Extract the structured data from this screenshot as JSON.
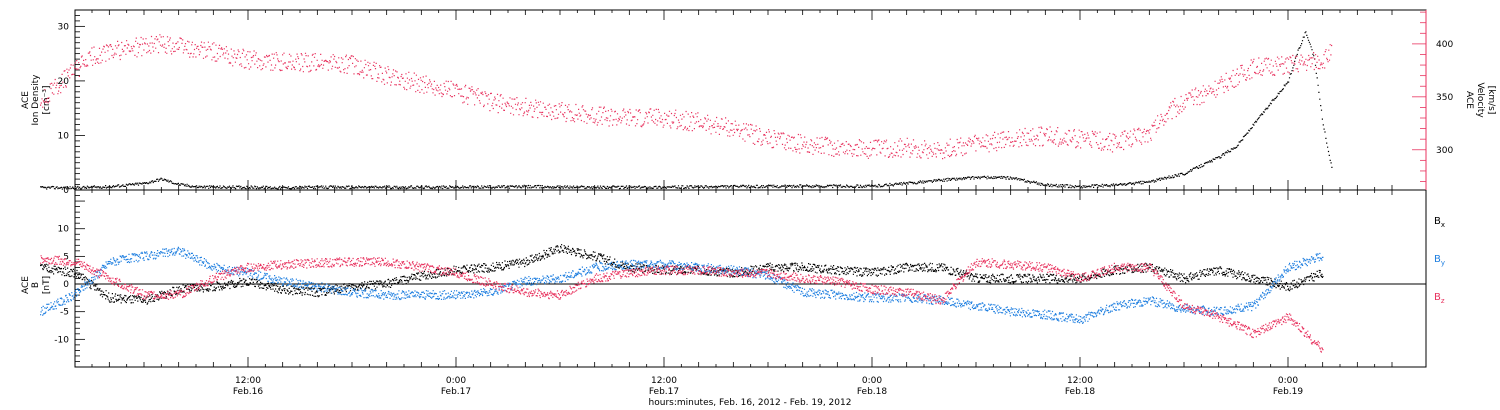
{
  "colors": {
    "black": "#000000",
    "red": "#e8335f",
    "blue": "#1f7fe0"
  },
  "chart_data": [
    {
      "type": "scatter",
      "panel": "top",
      "ylabel_lines": [
        "ACE",
        "Ion Density",
        "[cm⁻³]"
      ],
      "y2label_lines": [
        "ACE",
        "Velocity",
        "[km/s]"
      ],
      "ylim": [
        0,
        33
      ],
      "y_ticks": [
        "0",
        "10",
        "20",
        "30"
      ],
      "y2lim": [
        262,
        432
      ],
      "y2_ticks": [
        "300",
        "350",
        "400"
      ],
      "series": [
        {
          "color": "#000000",
          "axis": "left",
          "x_hours": [
            0,
            2,
            4,
            6,
            7,
            8,
            9,
            10,
            12,
            14,
            16,
            18,
            20,
            22,
            24,
            28,
            32,
            36,
            40,
            44,
            48,
            50,
            52,
            54,
            56,
            58,
            60,
            62,
            64,
            66,
            68,
            69,
            70,
            71,
            72,
            72.5,
            73,
            73.5,
            74,
            74.5
          ],
          "y": [
            0.4,
            0.4,
            0.6,
            1.2,
            2.0,
            1.0,
            0.6,
            0.5,
            0.5,
            0.4,
            0.5,
            0.5,
            0.5,
            0.5,
            0.5,
            0.6,
            0.5,
            0.5,
            0.6,
            0.7,
            0.7,
            1.2,
            1.8,
            2.3,
            2.2,
            0.9,
            0.6,
            0.9,
            1.5,
            3.0,
            6.0,
            8.0,
            12.0,
            16.0,
            20.0,
            25.0,
            29.0,
            24.0,
            12.0,
            4.0
          ]
        },
        {
          "color": "#e8335f",
          "axis": "right",
          "x_hours": [
            0,
            1,
            2,
            3,
            4,
            5,
            6,
            7,
            8,
            9,
            10,
            11,
            12,
            14,
            16,
            18,
            20,
            22,
            24,
            26,
            28,
            30,
            32,
            34,
            36,
            38,
            40,
            42,
            44,
            46,
            48,
            50,
            52,
            54,
            56,
            58,
            60,
            62,
            64,
            65,
            66,
            68,
            70,
            72,
            74,
            74.5
          ],
          "y": [
            345,
            360,
            375,
            388,
            392,
            395,
            398,
            400,
            398,
            394,
            392,
            388,
            385,
            383,
            382,
            380,
            370,
            362,
            355,
            345,
            340,
            336,
            332,
            330,
            330,
            326,
            320,
            310,
            305,
            302,
            300,
            302,
            300,
            305,
            310,
            313,
            310,
            306,
            316,
            335,
            345,
            360,
            378,
            380,
            385,
            392
          ]
        }
      ]
    },
    {
      "type": "scatter",
      "panel": "bottom",
      "ylabel_lines": [
        "ACE",
        "B",
        "[nT]"
      ],
      "ylim": [
        -15,
        17
      ],
      "y_ticks": [
        "-10",
        "-5",
        "0",
        "5",
        "10"
      ],
      "legend": [
        "B",
        "B",
        "B"
      ],
      "legend_subscripts": [
        "x",
        "y",
        "z"
      ],
      "x_ticks": [
        "12:00",
        "0:00",
        "12:00",
        "0:00",
        "12:00",
        "0:00"
      ],
      "x_tick_dates": [
        "Feb.16",
        "Feb.17",
        "Feb.17",
        "Feb.18",
        "Feb.18",
        "Feb.19"
      ],
      "xlabel": "hours:minutes, Feb. 16, 2012 - Feb. 19, 2012",
      "series": [
        {
          "name": "Bx",
          "color": "#000000",
          "x_hours": [
            0,
            2,
            4,
            6,
            8,
            10,
            12,
            14,
            16,
            18,
            20,
            22,
            24,
            26,
            28,
            30,
            32,
            34,
            36,
            38,
            40,
            42,
            44,
            46,
            48,
            50,
            52,
            54,
            56,
            58,
            60,
            62,
            64,
            66,
            68,
            70,
            72,
            74
          ],
          "y": [
            3.0,
            2.0,
            -2.5,
            -3.0,
            -1.0,
            -0.5,
            0.5,
            -1.0,
            -1.5,
            -0.5,
            0.0,
            1.5,
            2.5,
            3.0,
            4.0,
            6.5,
            5.0,
            3.0,
            2.5,
            2.5,
            2.0,
            3.0,
            3.0,
            2.5,
            2.0,
            3.0,
            3.0,
            1.0,
            1.0,
            1.0,
            1.0,
            2.5,
            3.0,
            1.0,
            2.5,
            1.0,
            -0.5,
            2.0
          ]
        },
        {
          "name": "By",
          "color": "#1f7fe0",
          "x_hours": [
            0,
            2,
            4,
            6,
            8,
            10,
            12,
            14,
            16,
            18,
            20,
            22,
            24,
            26,
            28,
            30,
            32,
            34,
            36,
            38,
            40,
            42,
            44,
            46,
            48,
            50,
            52,
            54,
            56,
            58,
            60,
            62,
            64,
            66,
            68,
            70,
            72,
            74
          ],
          "y": [
            -5.0,
            -2.0,
            4.0,
            5.0,
            6.0,
            3.0,
            2.0,
            0.5,
            -0.5,
            -1.5,
            -2.0,
            -2.0,
            -2.0,
            -1.5,
            0.5,
            1.0,
            3.0,
            3.5,
            3.5,
            3.0,
            2.5,
            1.5,
            -1.5,
            -2.0,
            -2.5,
            -2.5,
            -3.0,
            -4.0,
            -5.0,
            -5.5,
            -6.5,
            -4.0,
            -3.0,
            -4.5,
            -5.0,
            -4.0,
            3.0,
            5.0
          ]
        },
        {
          "name": "Bz",
          "color": "#e8335f",
          "x_hours": [
            0,
            2,
            4,
            6,
            8,
            10,
            12,
            14,
            16,
            18,
            20,
            22,
            24,
            26,
            28,
            30,
            32,
            34,
            36,
            38,
            40,
            42,
            44,
            46,
            48,
            50,
            52,
            54,
            56,
            58,
            60,
            62,
            64,
            66,
            68,
            70,
            72,
            74
          ],
          "y": [
            4.5,
            4.0,
            1.0,
            -2.0,
            -2.0,
            1.0,
            3.0,
            3.5,
            3.8,
            4.0,
            4.0,
            3.0,
            2.0,
            0.0,
            -1.5,
            -2.0,
            1.0,
            2.0,
            2.5,
            2.5,
            2.0,
            2.0,
            1.0,
            0.5,
            -1.0,
            -1.5,
            -3.0,
            4.0,
            3.5,
            3.0,
            1.0,
            3.0,
            3.0,
            -4.0,
            -6.0,
            -9.0,
            -6.0,
            -12.0
          ]
        }
      ]
    }
  ]
}
